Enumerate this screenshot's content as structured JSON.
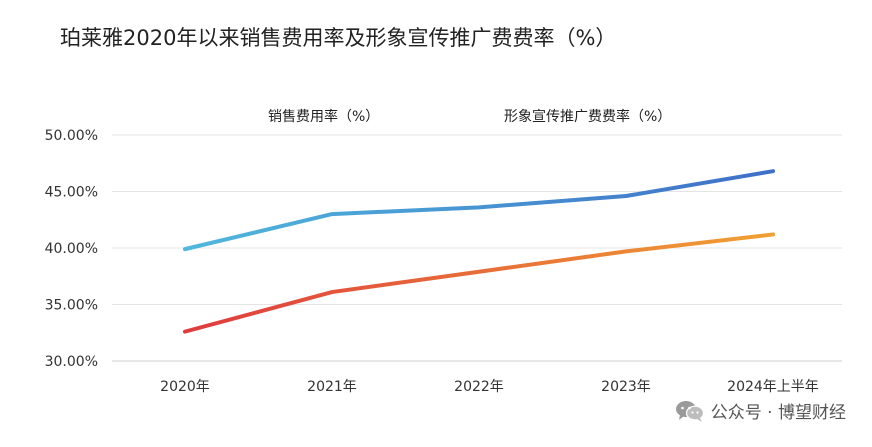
{
  "title": "珀莱雅2020年以来销售费用率及形象宣传推广费费率（%）",
  "watermark": {
    "text": "公众号 · 博望财经",
    "icon": "wechat-icon"
  },
  "chart_data": {
    "type": "line",
    "title": "珀莱雅2020年以来销售费用率及形象宣传推广费费率（%）",
    "xlabel": "",
    "ylabel": "",
    "categories": [
      "2020年",
      "2021年",
      "2022年",
      "2023年",
      "2024年上半年"
    ],
    "yticks": [
      {
        "value": 30,
        "label": "30.00%"
      },
      {
        "value": 35,
        "label": "35.00%"
      },
      {
        "value": 40,
        "label": "40.00%"
      },
      {
        "value": 45,
        "label": "45.00%"
      },
      {
        "value": 50,
        "label": "50.00%"
      }
    ],
    "ylim": [
      30,
      50
    ],
    "grid": true,
    "legend_position": "top",
    "series": [
      {
        "name": "销售费用率（%）",
        "values": [
          39.9,
          43.0,
          43.6,
          44.6,
          46.8
        ],
        "color_start": "#4fb8dc",
        "color_end": "#3f6fc8"
      },
      {
        "name": "形象宣传推广费费率（%）",
        "values": [
          32.6,
          36.1,
          37.9,
          39.7,
          41.2
        ],
        "color_start": "#e03a3e",
        "color_end": "#f0a032"
      }
    ]
  }
}
